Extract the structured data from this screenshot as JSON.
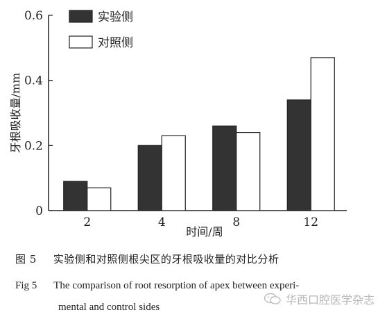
{
  "chart_data": {
    "type": "bar",
    "categories": [
      "2",
      "4",
      "8",
      "12"
    ],
    "series": [
      {
        "name": "实验侧",
        "values": [
          0.09,
          0.2,
          0.26,
          0.34
        ],
        "color": "#333333"
      },
      {
        "name": "对照侧",
        "values": [
          0.07,
          0.23,
          0.24,
          0.47
        ],
        "color": "#ffffff"
      }
    ],
    "xlabel": "时间/周",
    "ylabel": "牙根吸收量/mm",
    "ylim": [
      0,
      0.6
    ],
    "yticks": [
      "0",
      "0.2",
      "0.4",
      "0.6"
    ],
    "grid": false,
    "legend": "top-left"
  },
  "caption": {
    "cn_num": "图 5",
    "cn_text": "实验侧和对照侧根尖区的牙根吸收量的对比分析",
    "en_num": "Fig 5",
    "en_text_line1": "The comparison of root resorption of apex between experi-",
    "en_text_line2": "mental and control sides"
  },
  "watermark": {
    "text": "华西口腔医学杂志",
    "icon": "wechat-icon"
  }
}
